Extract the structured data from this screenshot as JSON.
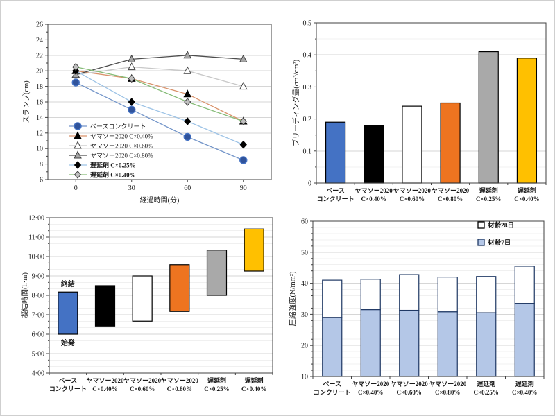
{
  "canvas": {
    "background": "#ffffff"
  },
  "chart_data": [
    {
      "name": "slump-vs-time",
      "type": "line",
      "ylabel": "スランプ(cm)",
      "xlabel": "経過時間(分)",
      "ylim": [
        6,
        26
      ],
      "ytick_labels": [
        "6",
        "8",
        "10",
        "12",
        "14",
        "16",
        "18",
        "20",
        "22",
        "24",
        "26"
      ],
      "x": [
        0,
        30,
        60,
        90
      ],
      "x_labels": [
        "0",
        "30",
        "60",
        "90"
      ],
      "grid": "horizontal-major",
      "legend_position": "inside-left",
      "series": [
        {
          "name": "ベースコンクリート",
          "marker": "circle",
          "marker_fill": "#30539B",
          "marker_stroke": "#4472C4",
          "line_color": "#7395C9",
          "bold": false,
          "values": [
            18.5,
            15.0,
            11.5,
            8.5
          ]
        },
        {
          "name": "ヤマソー2020 C×0.40%",
          "marker": "triangle",
          "marker_fill": "#000000",
          "marker_stroke": "#000000",
          "line_color": "#D9926B",
          "bold": false,
          "values": [
            20.0,
            19.0,
            17.0,
            13.5
          ]
        },
        {
          "name": "ヤマソー2020 C×0.60%",
          "marker": "triangle",
          "marker_fill": "#FFFFFF",
          "marker_stroke": "#404040",
          "line_color": "#C8C8C8",
          "bold": false,
          "values": [
            19.5,
            20.5,
            20.0,
            18.0
          ]
        },
        {
          "name": "ヤマソー2020 C×0.80%",
          "marker": "triangle",
          "marker_fill": "#A6A6A6",
          "marker_stroke": "#404040",
          "line_color": "#4D4D4D",
          "bold": false,
          "values": [
            19.5,
            21.5,
            22.0,
            21.5
          ]
        },
        {
          "name": "遅延剤 C×0.25%",
          "marker": "diamond",
          "marker_fill": "#000000",
          "marker_stroke": "#000000",
          "line_color": "#9DC3E6",
          "bold": true,
          "values": [
            20.0,
            16.0,
            13.5,
            10.5
          ]
        },
        {
          "name": "遅延剤 C×0.40%",
          "marker": "diamond",
          "marker_fill": "#BFBFBF",
          "marker_stroke": "#404040",
          "line_color": "#86BC78",
          "bold": true,
          "values": [
            20.5,
            19.0,
            16.0,
            13.5
          ]
        }
      ]
    },
    {
      "name": "bleeding",
      "type": "bar",
      "ylabel": "ブリーディング量(cm³/cm²)",
      "ylim": [
        0,
        0.5
      ],
      "ytick_labels": [
        "0",
        "0.1",
        "0.2",
        "0.3",
        "0.4",
        "0.5"
      ],
      "grid": "horizontal-major-minor",
      "categories": [
        [
          "ベース",
          "コンクリート"
        ],
        [
          "ヤマソー2020",
          "C×0.40%"
        ],
        [
          "ヤマソー2020",
          "C×0.60%"
        ],
        [
          "ヤマソー2020",
          "C×0.80%"
        ],
        [
          "遅延剤",
          "C×0.25%"
        ],
        [
          "遅延剤",
          "C×0.40%"
        ]
      ],
      "values": [
        0.19,
        0.18,
        0.24,
        0.25,
        0.41,
        0.39
      ],
      "bar_colors": [
        "#4472C4",
        "#000000",
        "#FFFFFF",
        "#EE7420",
        "#A9A9A9",
        "#FFC000"
      ],
      "bar_border": "#000000"
    },
    {
      "name": "setting-time",
      "type": "range-bar",
      "ylabel": "凝結時間(h·m)",
      "ylim": [
        4,
        12
      ],
      "ytick_labels": [
        "4·00",
        "5·00",
        "6·00",
        "7·00",
        "8·00",
        "9·00",
        "10·00",
        "11·00",
        "12·00"
      ],
      "grid": "horizontal-major-minor",
      "categories": [
        [
          "ベース",
          "コンクリート"
        ],
        [
          "ヤマソー2020",
          "C×0.40%"
        ],
        [
          "ヤマソー2020",
          "C×0.60%"
        ],
        [
          "ヤマソー2020",
          "C×0.80%"
        ],
        [
          "遅延剤",
          "C×0.25%"
        ],
        [
          "遅延剤",
          "C×0.40%"
        ]
      ],
      "ranges": [
        {
          "start": 6.0,
          "end": 8.17
        },
        {
          "start": 6.42,
          "end": 8.5
        },
        {
          "start": 6.67,
          "end": 9.0
        },
        {
          "start": 7.17,
          "end": 9.58
        },
        {
          "start": 8.0,
          "end": 10.33
        },
        {
          "start": 9.25,
          "end": 11.42
        }
      ],
      "bar_colors": [
        "#4472C4",
        "#000000",
        "#FFFFFF",
        "#EE7420",
        "#A9A9A9",
        "#FFC000"
      ],
      "bar_border": "#000000",
      "annotations": [
        {
          "text": "終結",
          "position": "above-first-bar"
        },
        {
          "text": "始発",
          "position": "below-first-bar"
        }
      ]
    },
    {
      "name": "compressive-strength",
      "type": "stacked-bar",
      "ylabel": "圧縮強度(N/mm²)",
      "ylim": [
        10,
        60
      ],
      "ytick_labels": [
        "10",
        "20",
        "30",
        "40",
        "50",
        "60"
      ],
      "grid": "horizontal-major-minor",
      "categories": [
        [
          "ベース",
          "コンクリート"
        ],
        [
          "ヤマソー2020",
          "C×0.40%"
        ],
        [
          "ヤマソー2020",
          "C×0.60%"
        ],
        [
          "ヤマソー2020",
          "C×0.80%"
        ],
        [
          "遅延剤",
          "C×0.25%"
        ],
        [
          "遅延剤",
          "C×0.40%"
        ]
      ],
      "series": [
        {
          "name": "材齢7日",
          "fill": "#B4C7E7",
          "values": [
            29.0,
            31.5,
            31.3,
            30.8,
            30.5,
            33.5
          ]
        },
        {
          "name": "材齢28日",
          "fill": "#FFFFFF",
          "values": [
            41.0,
            41.3,
            42.8,
            42.0,
            42.2,
            45.5
          ]
        }
      ],
      "legend": [
        {
          "label": "材齢28日",
          "fill": "#FFFFFF"
        },
        {
          "label": "材齢7日",
          "fill": "#B4C7E7"
        }
      ],
      "legend_position": "inside-top-right",
      "bar_border": "#1F3864"
    }
  ]
}
